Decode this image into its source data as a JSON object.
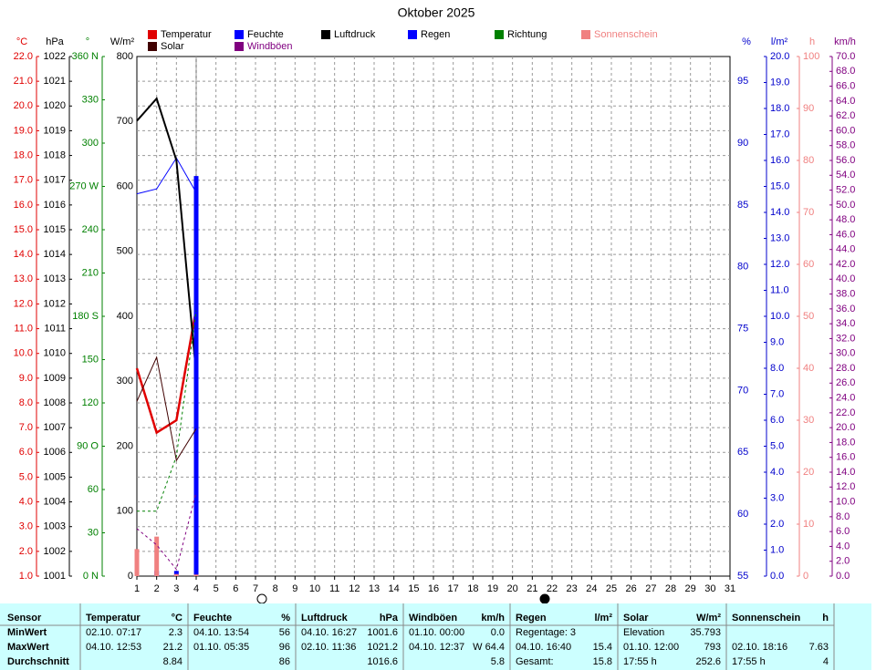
{
  "chart_data": {
    "type": "line",
    "title": "Oktober 2025",
    "x": [
      1,
      2,
      3,
      4
    ],
    "xlim": [
      1,
      31
    ],
    "xticks": [
      1,
      2,
      3,
      4,
      5,
      6,
      7,
      8,
      9,
      10,
      11,
      12,
      13,
      14,
      15,
      16,
      17,
      18,
      19,
      20,
      21,
      22,
      23,
      24,
      25,
      26,
      27,
      28,
      29,
      30,
      31
    ],
    "grid": true,
    "axes": [
      {
        "label": "°C",
        "color": "#e00000",
        "lim": [
          1,
          22
        ],
        "ticks": [
          {
            "value": 1,
            "label": "1.0"
          },
          {
            "value": 2,
            "label": "2.0"
          },
          {
            "value": 3,
            "label": "3.0"
          },
          {
            "value": 4,
            "label": "4.0"
          },
          {
            "value": 5,
            "label": "5.0"
          },
          {
            "value": 6,
            "label": "6.0"
          },
          {
            "value": 7,
            "label": "7.0"
          },
          {
            "value": 8,
            "label": "8.0"
          },
          {
            "value": 9,
            "label": "9.0"
          },
          {
            "value": 10,
            "label": "10.0"
          },
          {
            "value": 11,
            "label": "11.0"
          },
          {
            "value": 12,
            "label": "12.0"
          },
          {
            "value": 13,
            "label": "13.0"
          },
          {
            "value": 14,
            "label": "14.0"
          },
          {
            "value": 15,
            "label": "15.0"
          },
          {
            "value": 16,
            "label": "16.0"
          },
          {
            "value": 17,
            "label": "17.0"
          },
          {
            "value": 18,
            "label": "18.0"
          },
          {
            "value": 19,
            "label": "19.0"
          },
          {
            "value": 20,
            "label": "20.0"
          },
          {
            "value": 21,
            "label": "21.0"
          },
          {
            "value": 22,
            "label": "22.0"
          }
        ]
      },
      {
        "label": "hPa",
        "color": "#000000",
        "lim": [
          1001,
          1022
        ],
        "ticks": [
          1001,
          1002,
          1003,
          1004,
          1005,
          1006,
          1007,
          1008,
          1009,
          1010,
          1011,
          1012,
          1013,
          1014,
          1015,
          1016,
          1017,
          1018,
          1019,
          1020,
          1021,
          1022
        ]
      },
      {
        "label": "°",
        "color": "#008000",
        "lim": [
          0,
          360
        ],
        "ticks": [
          {
            "value": 0,
            "label": "0 N"
          },
          30,
          60,
          {
            "value": 90,
            "label": "90 O"
          },
          120,
          150,
          {
            "value": 180,
            "label": "180 S"
          },
          210,
          240,
          {
            "value": 270,
            "label": "270 W"
          },
          300,
          330,
          {
            "value": 360,
            "label": "360 N"
          }
        ]
      },
      {
        "label": "W/m²",
        "color": "#000000",
        "lim": [
          0,
          800
        ],
        "ticks": [
          0,
          100,
          200,
          300,
          400,
          500,
          600,
          700,
          800
        ]
      },
      {
        "label": "%",
        "color": "#0000cc",
        "lim": [
          55,
          97
        ],
        "ticks": [
          55,
          60,
          65,
          70,
          75,
          80,
          85,
          90,
          95
        ]
      },
      {
        "label": "l/m²",
        "color": "#0000cc",
        "lim": [
          0,
          20
        ],
        "ticks": [
          {
            "value": 0,
            "label": "0.0"
          },
          {
            "value": 1,
            "label": "1.0"
          },
          {
            "value": 2,
            "label": "2.0"
          },
          {
            "value": 3,
            "label": "3.0"
          },
          {
            "value": 4,
            "label": "4.0"
          },
          {
            "value": 5,
            "label": "5.0"
          },
          {
            "value": 6,
            "label": "6.0"
          },
          {
            "value": 7,
            "label": "7.0"
          },
          {
            "value": 8,
            "label": "8.0"
          },
          {
            "value": 9,
            "label": "9.0"
          },
          {
            "value": 10,
            "label": "10.0"
          },
          {
            "value": 11,
            "label": "11.0"
          },
          {
            "value": 12,
            "label": "12.0"
          },
          {
            "value": 13,
            "label": "13.0"
          },
          {
            "value": 14,
            "label": "14.0"
          },
          {
            "value": 15,
            "label": "15.0"
          },
          {
            "value": 16,
            "label": "16.0"
          },
          {
            "value": 17,
            "label": "17.0"
          },
          {
            "value": 18,
            "label": "18.0"
          },
          {
            "value": 19,
            "label": "19.0"
          },
          {
            "value": 20,
            "label": "20.0"
          }
        ]
      },
      {
        "label": "h",
        "color": "#f08080",
        "lim": [
          0,
          100
        ],
        "ticks": [
          0,
          10,
          20,
          30,
          40,
          50,
          60,
          70,
          80,
          90,
          100
        ]
      },
      {
        "label": "km/h",
        "color": "#800080",
        "lim": [
          0,
          70
        ],
        "ticks": [
          {
            "value": 0,
            "label": "0.0"
          },
          {
            "value": 2,
            "label": "2.0"
          },
          {
            "value": 4,
            "label": "4.0"
          },
          {
            "value": 6,
            "label": "6.0"
          },
          {
            "value": 8,
            "label": "8.0"
          },
          {
            "value": 10,
            "label": "10.0"
          },
          {
            "value": 12,
            "label": "12.0"
          },
          {
            "value": 14,
            "label": "14.0"
          },
          {
            "value": 16,
            "label": "16.0"
          },
          {
            "value": 18,
            "label": "18.0"
          },
          {
            "value": 20,
            "label": "20.0"
          },
          {
            "value": 22,
            "label": "22.0"
          },
          {
            "value": 24,
            "label": "24.0"
          },
          {
            "value": 26,
            "label": "26.0"
          },
          {
            "value": 28,
            "label": "28.0"
          },
          {
            "value": 30,
            "label": "30.0"
          },
          {
            "value": 32,
            "label": "32.0"
          },
          {
            "value": 34,
            "label": "34.0"
          },
          {
            "value": 36,
            "label": "36.0"
          },
          {
            "value": 38,
            "label": "38.0"
          },
          {
            "value": 40,
            "label": "40.0"
          },
          {
            "value": 42,
            "label": "42.0"
          },
          {
            "value": 44,
            "label": "44.0"
          },
          {
            "value": 46,
            "label": "46.0"
          },
          {
            "value": 48,
            "label": "48.0"
          },
          {
            "value": 50,
            "label": "50.0"
          },
          {
            "value": 52,
            "label": "52.0"
          },
          {
            "value": 54,
            "label": "54.0"
          },
          {
            "value": 56,
            "label": "56.0"
          },
          {
            "value": 58,
            "label": "58.0"
          },
          {
            "value": 60,
            "label": "60.0"
          },
          {
            "value": 62,
            "label": "62.0"
          },
          {
            "value": 64,
            "label": "64.0"
          },
          {
            "value": 66,
            "label": "66.0"
          },
          {
            "value": 68,
            "label": "68.0"
          },
          {
            "value": 70,
            "label": "70.0"
          }
        ]
      }
    ],
    "series": [
      {
        "name": "Temperatur",
        "color": "#e00000",
        "axis": 0,
        "kind": "line",
        "width": 2.5,
        "values": [
          9.4,
          6.8,
          7.3,
          11.8
        ]
      },
      {
        "name": "Feuchte",
        "color": "#0000ff",
        "axis": 4,
        "kind": "line",
        "width": 1,
        "values": [
          85.9,
          86.3,
          88.8,
          86.0
        ]
      },
      {
        "name": "Luftdruck",
        "color": "#000000",
        "axis": 1,
        "kind": "line",
        "width": 2,
        "values": [
          1019.4,
          1020.3,
          1017.8,
          1009.2
        ]
      },
      {
        "name": "Regen",
        "color": "#0000ff",
        "axis": 5,
        "kind": "bar",
        "values": [
          0,
          0.2,
          0.2,
          15.4
        ]
      },
      {
        "name": "Richtung",
        "color": "#008000",
        "axis": 2,
        "kind": "line",
        "dash": true,
        "width": 1,
        "values": [
          45,
          45,
          83,
          184
        ]
      },
      {
        "name": "Sonnenschein",
        "color": "#f08080",
        "axis": 6,
        "kind": "bar",
        "values": [
          5.2,
          7.6,
          0.4,
          0.3
        ]
      },
      {
        "name": "Solar",
        "color": "#400000",
        "axis": 3,
        "kind": "line",
        "width": 1,
        "values": [
          269,
          337,
          178,
          227
        ]
      },
      {
        "name": "Windböen",
        "color": "#800080",
        "axis": 7,
        "kind": "line",
        "dash": true,
        "width": 1,
        "values": [
          6.4,
          4.2,
          0.9,
          11.3
        ]
      }
    ]
  },
  "table": {
    "header": [
      "Sensor",
      "Temperatur",
      "°C",
      "Feuchte",
      "%",
      "Luftdruck",
      "hPa",
      "Windböen",
      "km/h",
      "Regen",
      "l/m²",
      "Solar",
      "W/m²",
      "Sonnenschein",
      "h"
    ],
    "rows": [
      [
        "MinWert",
        "02.10.  07:17",
        "2.3",
        "04.10.  13:54",
        "56",
        "04.10.  16:27",
        "1001.6",
        "01.10.  00:00",
        "0.0",
        "Regentage: 3",
        null,
        "Elevation",
        "35.793",
        null,
        null
      ],
      [
        "MaxWert",
        "04.10.  12:53",
        "21.2",
        "01.10.  05:35",
        "96",
        "02.10.  11:36",
        "1021.2",
        "04.10.  12:37",
        "W 64.4",
        "04.10.  16:40",
        "15.4",
        "01.10.  12:00",
        "793",
        "02.10.  18:16",
        "7.63"
      ],
      [
        "Durchschnitt",
        null,
        "8.84",
        null,
        "86",
        null,
        "1016.6",
        null,
        "5.8",
        "Gesamt:",
        "15.8",
        "17:55 h",
        "252.6",
        "17:55 h",
        "4"
      ]
    ]
  }
}
